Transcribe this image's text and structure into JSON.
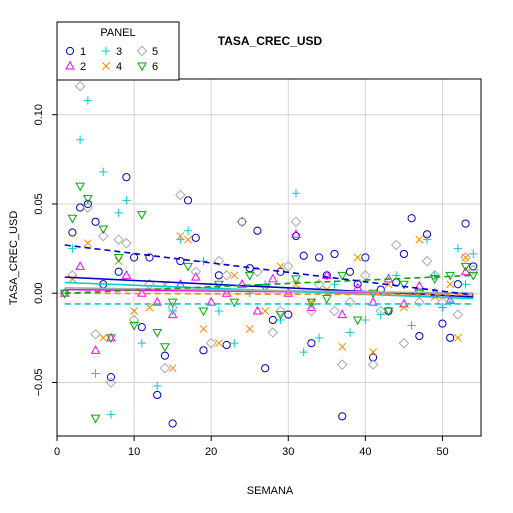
{
  "chart_data": {
    "type": "scatter",
    "title": "TASA_CREC_USD",
    "xlabel": "SEMANA",
    "ylabel": "TASA_CREC_USD",
    "xlim": [
      0,
      55
    ],
    "ylim": [
      -0.08,
      0.12
    ],
    "x_ticks": [
      0,
      10,
      20,
      30,
      40,
      50
    ],
    "y_ticks": [
      -0.05,
      0.0,
      0.05,
      0.1
    ],
    "y_tick_labels": [
      "−0.05",
      "0.00",
      "0.05",
      "0.10"
    ],
    "grid": true,
    "legend": {
      "title": "PANEL",
      "position": "top-left"
    },
    "series": [
      {
        "name": "1",
        "color": "#0000cc",
        "symbol": "circle",
        "trend": {
          "start": 0.009,
          "end": -0.002,
          "dash": "solid"
        },
        "points": [
          [
            1,
            0.0
          ],
          [
            2,
            0.034
          ],
          [
            3,
            0.048
          ],
          [
            4,
            0.05
          ],
          [
            5,
            0.04
          ],
          [
            6,
            0.005
          ],
          [
            7,
            -0.047
          ],
          [
            8,
            0.012
          ],
          [
            9,
            0.065
          ],
          [
            10,
            0.02
          ],
          [
            11,
            -0.019
          ],
          [
            12,
            0.02
          ],
          [
            13,
            -0.057
          ],
          [
            14,
            -0.035
          ],
          [
            15,
            -0.073
          ],
          [
            16,
            0.018
          ],
          [
            17,
            0.052
          ],
          [
            18,
            0.031
          ],
          [
            19,
            -0.032
          ],
          [
            21,
            0.01
          ],
          [
            22,
            -0.029
          ],
          [
            24,
            0.04
          ],
          [
            25,
            0.014
          ],
          [
            26,
            0.035
          ],
          [
            27,
            -0.042
          ],
          [
            28,
            -0.015
          ],
          [
            29,
            0.012
          ],
          [
            30,
            -0.012
          ],
          [
            31,
            0.032
          ],
          [
            32,
            0.021
          ],
          [
            33,
            -0.028
          ],
          [
            34,
            0.02
          ],
          [
            35,
            0.01
          ],
          [
            36,
            0.022
          ],
          [
            37,
            -0.069
          ],
          [
            38,
            0.012
          ],
          [
            39,
            0.005
          ],
          [
            40,
            0.02
          ],
          [
            41,
            -0.036
          ],
          [
            42,
            0.002
          ],
          [
            43,
            -0.01
          ],
          [
            44,
            0.006
          ],
          [
            45,
            0.022
          ],
          [
            46,
            0.042
          ],
          [
            47,
            -0.024
          ],
          [
            48,
            0.033
          ],
          [
            50,
            -0.017
          ],
          [
            51,
            -0.025
          ],
          [
            52,
            0.005
          ],
          [
            53,
            0.039
          ],
          [
            54,
            0.015
          ]
        ]
      },
      {
        "name": "2",
        "color": "#ff00ff",
        "symbol": "triangle",
        "trend": {
          "start": 0.002,
          "end": 0.0,
          "dash": "solid"
        },
        "points": [
          [
            1,
            0.0
          ],
          [
            3,
            0.015
          ],
          [
            5,
            -0.032
          ],
          [
            7,
            -0.025
          ],
          [
            9,
            0.01
          ],
          [
            11,
            0.0
          ],
          [
            13,
            -0.005
          ],
          [
            15,
            -0.012
          ],
          [
            16,
            0.005
          ],
          [
            18,
            0.009
          ],
          [
            20,
            -0.005
          ],
          [
            22,
            0.0
          ],
          [
            24,
            0.005
          ],
          [
            26,
            -0.01
          ],
          [
            28,
            0.008
          ],
          [
            30,
            0.0
          ],
          [
            31,
            0.033
          ],
          [
            33,
            -0.008
          ],
          [
            35,
            0.01
          ],
          [
            37,
            -0.012
          ],
          [
            39,
            0.003
          ],
          [
            41,
            -0.005
          ],
          [
            43,
            0.008
          ],
          [
            45,
            -0.006
          ],
          [
            47,
            0.004
          ],
          [
            49,
            0.0
          ],
          [
            51,
            -0.004
          ],
          [
            53,
            0.012
          ]
        ]
      },
      {
        "name": "3",
        "color": "#00cccc",
        "symbol": "plus",
        "trend": {
          "start": 0.006,
          "end": -0.003,
          "dash": "solid"
        },
        "points": [
          [
            2,
            0.025
          ],
          [
            3,
            0.086
          ],
          [
            4,
            0.108
          ],
          [
            5,
            -0.045
          ],
          [
            6,
            0.068
          ],
          [
            7,
            -0.068
          ],
          [
            8,
            0.045
          ],
          [
            9,
            0.052
          ],
          [
            11,
            -0.028
          ],
          [
            13,
            -0.052
          ],
          [
            15,
            -0.01
          ],
          [
            16,
            0.03
          ],
          [
            17,
            0.035
          ],
          [
            19,
            0.018
          ],
          [
            21,
            -0.01
          ],
          [
            23,
            -0.028
          ],
          [
            25,
            0.0
          ],
          [
            27,
            0.005
          ],
          [
            29,
            -0.015
          ],
          [
            31,
            0.056
          ],
          [
            32,
            -0.033
          ],
          [
            34,
            -0.025
          ],
          [
            36,
            0.005
          ],
          [
            38,
            -0.022
          ],
          [
            40,
            -0.015
          ],
          [
            42,
            -0.012
          ],
          [
            44,
            0.01
          ],
          [
            46,
            -0.018
          ],
          [
            48,
            0.03
          ],
          [
            49,
            0.01
          ],
          [
            50,
            -0.008
          ],
          [
            51,
            -0.005
          ],
          [
            52,
            0.025
          ],
          [
            53,
            0.005
          ],
          [
            54,
            0.022
          ]
        ]
      },
      {
        "name": "4",
        "color": "#ff8800",
        "symbol": "x",
        "trend": {
          "start": 0.0,
          "end": -0.001,
          "dash": "dashed"
        },
        "points": [
          [
            2,
            0.008
          ],
          [
            4,
            0.028
          ],
          [
            6,
            -0.025
          ],
          [
            8,
            0.018
          ],
          [
            10,
            -0.01
          ],
          [
            12,
            -0.008
          ],
          [
            14,
            0.005
          ],
          [
            15,
            -0.042
          ],
          [
            16,
            0.032
          ],
          [
            17,
            0.03
          ],
          [
            19,
            -0.02
          ],
          [
            21,
            -0.028
          ],
          [
            23,
            0.01
          ],
          [
            25,
            -0.02
          ],
          [
            27,
            -0.01
          ],
          [
            29,
            0.015
          ],
          [
            31,
            0.005
          ],
          [
            33,
            -0.005
          ],
          [
            35,
            0.002
          ],
          [
            37,
            -0.03
          ],
          [
            39,
            0.02
          ],
          [
            41,
            -0.033
          ],
          [
            43,
            0.005
          ],
          [
            45,
            -0.008
          ],
          [
            47,
            0.03
          ],
          [
            49,
            -0.002
          ],
          [
            51,
            0.005
          ],
          [
            52,
            -0.025
          ],
          [
            53,
            0.02
          ]
        ]
      },
      {
        "name": "5",
        "color": "#aaaaaa",
        "symbol": "diamond",
        "trend": {
          "start": 0.003,
          "end": 0.0,
          "dash": "solid"
        },
        "points": [
          [
            1,
            0.0
          ],
          [
            2,
            0.01
          ],
          [
            3,
            0.116
          ],
          [
            4,
            0.048
          ],
          [
            5,
            -0.023
          ],
          [
            6,
            0.032
          ],
          [
            7,
            -0.05
          ],
          [
            8,
            0.03
          ],
          [
            9,
            0.028
          ],
          [
            10,
            -0.015
          ],
          [
            12,
            0.005
          ],
          [
            14,
            -0.042
          ],
          [
            15,
            -0.008
          ],
          [
            16,
            0.055
          ],
          [
            18,
            0.012
          ],
          [
            20,
            -0.028
          ],
          [
            21,
            0.018
          ],
          [
            22,
            0.01
          ],
          [
            24,
            0.04
          ],
          [
            26,
            0.012
          ],
          [
            28,
            -0.022
          ],
          [
            29,
            -0.01
          ],
          [
            30,
            0.015
          ],
          [
            31,
            0.04
          ],
          [
            33,
            -0.01
          ],
          [
            34,
            0.005
          ],
          [
            36,
            -0.01
          ],
          [
            37,
            -0.04
          ],
          [
            38,
            -0.005
          ],
          [
            40,
            0.01
          ],
          [
            41,
            -0.04
          ],
          [
            42,
            -0.01
          ],
          [
            44,
            0.027
          ],
          [
            45,
            -0.028
          ],
          [
            47,
            -0.005
          ],
          [
            48,
            0.018
          ],
          [
            49,
            0.01
          ],
          [
            50,
            -0.005
          ],
          [
            52,
            -0.012
          ],
          [
            53,
            0.02
          ],
          [
            54,
            0.013
          ]
        ]
      },
      {
        "name": "6",
        "color": "#00aa00",
        "symbol": "triangle-down",
        "trend": {
          "start": 0.0,
          "end": 0.01,
          "dash": "dashed"
        },
        "points": [
          [
            1,
            0.0
          ],
          [
            2,
            0.042
          ],
          [
            3,
            0.06
          ],
          [
            4,
            0.053
          ],
          [
            5,
            -0.07
          ],
          [
            6,
            0.036
          ],
          [
            7,
            -0.025
          ],
          [
            8,
            0.02
          ],
          [
            10,
            -0.018
          ],
          [
            11,
            0.044
          ],
          [
            13,
            -0.022
          ],
          [
            14,
            -0.03
          ],
          [
            15,
            -0.005
          ],
          [
            17,
            0.015
          ],
          [
            19,
            -0.01
          ],
          [
            21,
            0.005
          ],
          [
            23,
            -0.005
          ],
          [
            25,
            0.01
          ],
          [
            27,
            0.003
          ],
          [
            29,
            -0.012
          ],
          [
            31,
            0.008
          ],
          [
            33,
            -0.005
          ],
          [
            35,
            -0.003
          ],
          [
            37,
            0.01
          ],
          [
            39,
            -0.015
          ],
          [
            41,
            0.0
          ],
          [
            43,
            -0.01
          ],
          [
            45,
            0.005
          ],
          [
            47,
            0.0
          ],
          [
            49,
            0.008
          ],
          [
            51,
            0.01
          ],
          [
            53,
            0.015
          ],
          [
            54,
            0.01
          ]
        ]
      }
    ],
    "extra_trends": [
      {
        "color": "#0000cc",
        "start": 0.027,
        "end": -0.001,
        "dash": "dashed"
      },
      {
        "color": "#00cccc",
        "start": -0.006,
        "end": -0.006,
        "dash": "dashed"
      }
    ]
  }
}
